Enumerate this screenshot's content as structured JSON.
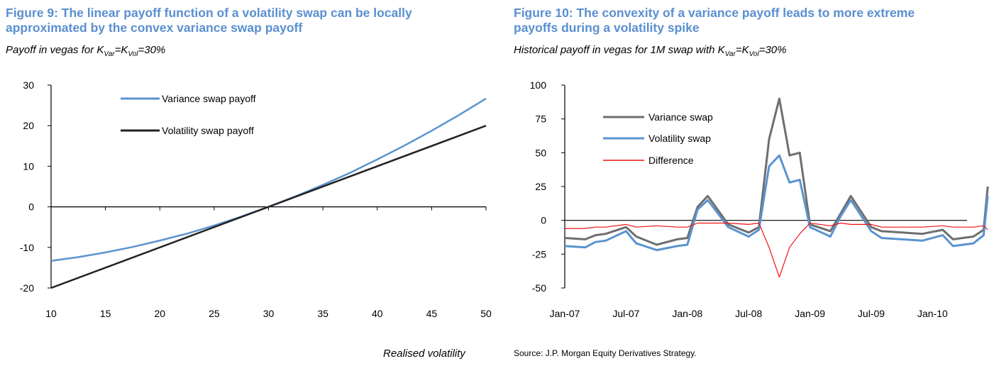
{
  "figure9": {
    "title_line1": "Figure 9: The linear payoff function of a volatility swap can be locally",
    "title_line2": "approximated by the convex variance swap payoff",
    "subtitle": {
      "pre": "Payoff in vegas for K",
      "sub1": "Var",
      "mid": "=K",
      "sub2": "Vol",
      "post": "=30%"
    }
  },
  "figure10": {
    "title_line1": "Figure 10: The convexity of a variance payoff leads to more extreme",
    "title_line2": "payoffs during a volatility spike",
    "subtitle": {
      "pre": "Historical payoff in vegas for 1M swap with K",
      "sub1": "Var",
      "mid": "=K",
      "sub2": "Vol",
      "post": "=30%"
    }
  },
  "source": "Source: J.P. Morgan Equity Derivatives Strategy.",
  "colors": {
    "title": "#5a8fd0",
    "variance_fig9": "#5b93cf",
    "volatility_fig9": "#222222",
    "variance_fig10": "#6e6e6e",
    "volatility_fig10": "#5b93cf",
    "difference": "#ee1111"
  },
  "chart_data": [
    {
      "type": "line",
      "xlabel": "Realised volatility",
      "ylabel": "",
      "xlim": [
        10,
        50
      ],
      "ylim": [
        -20,
        30
      ],
      "x_ticks": [
        "10",
        "15",
        "20",
        "25",
        "30",
        "35",
        "40",
        "45",
        "50"
      ],
      "y_ticks": [
        "30",
        "20",
        "10",
        "0",
        "-10",
        "-20"
      ],
      "legend_position": "top-center",
      "series": [
        {
          "name": "Variance swap payoff",
          "x": [
            10,
            12.5,
            15,
            17.5,
            20,
            22.5,
            25,
            27.5,
            30,
            32.5,
            35,
            37.5,
            40,
            42.5,
            45,
            47.5,
            50
          ],
          "y": [
            -13.3,
            -12.4,
            -11.25,
            -9.9,
            -8.3,
            -6.6,
            -4.6,
            -2.4,
            0,
            2.6,
            5.4,
            8.4,
            11.7,
            15.1,
            18.75,
            22.6,
            26.7
          ]
        },
        {
          "name": "Volatility swap payoff",
          "x": [
            10,
            50
          ],
          "y": [
            -20,
            20
          ]
        }
      ]
    },
    {
      "type": "line",
      "xlabel": "",
      "ylabel": "",
      "ylim": [
        -50,
        100
      ],
      "x_ticks": [
        "Jan-07",
        "Jul-07",
        "Jan-08",
        "Jul-08",
        "Jan-09",
        "Jul-09",
        "Jan-10"
      ],
      "y_ticks": [
        "100",
        "75",
        "50",
        "25",
        "0",
        "-25",
        "-50"
      ],
      "legend_position": "top-left",
      "series": [
        {
          "name": "Variance swap",
          "x": [
            "Jan-07",
            "Mar-07",
            "Apr-07",
            "May-07",
            "Jul-07",
            "Aug-07",
            "Oct-07",
            "Dec-07",
            "Jan-08",
            "Feb-08",
            "Mar-08",
            "May-08",
            "Jul-08",
            "Aug-08",
            "Sep-08",
            "Oct-08",
            "Nov-08",
            "Dec-08",
            "Jan-09",
            "Mar-09",
            "Apr-09",
            "May-09",
            "Jul-09",
            "Aug-09",
            "Oct-09",
            "Dec-09",
            "Feb-10",
            "Mar-10",
            "May-10",
            "Jun-10",
            "Jun-10"
          ],
          "y": [
            -13,
            -14,
            -11,
            -10,
            -5,
            -12,
            -18,
            -14,
            -13,
            10,
            18,
            -3,
            -9,
            -5,
            60,
            90,
            48,
            50,
            -3,
            -8,
            5,
            18,
            -5,
            -8,
            -9,
            -10,
            -7,
            -14,
            -12,
            -7,
            25
          ]
        },
        {
          "name": "Volatility swap",
          "x": [
            "Jan-07",
            "Mar-07",
            "Apr-07",
            "May-07",
            "Jul-07",
            "Aug-07",
            "Oct-07",
            "Dec-07",
            "Jan-08",
            "Feb-08",
            "Mar-08",
            "May-08",
            "Jul-08",
            "Aug-08",
            "Sep-08",
            "Oct-08",
            "Nov-08",
            "Dec-08",
            "Jan-09",
            "Mar-09",
            "Apr-09",
            "May-09",
            "Jul-09",
            "Aug-09",
            "Oct-09",
            "Dec-09",
            "Feb-10",
            "Mar-10",
            "May-10",
            "Jun-10",
            "Jun-10"
          ],
          "y": [
            -19,
            -20,
            -16,
            -15,
            -8,
            -17,
            -22,
            -19,
            -18,
            8,
            15,
            -5,
            -12,
            -7,
            40,
            48,
            28,
            30,
            -5,
            -12,
            3,
            15,
            -8,
            -13,
            -14,
            -15,
            -11,
            -19,
            -17,
            -11,
            18
          ]
        },
        {
          "name": "Difference",
          "x": [
            "Jan-07",
            "Mar-07",
            "Apr-07",
            "May-07",
            "Jul-07",
            "Aug-07",
            "Oct-07",
            "Dec-07",
            "Jan-08",
            "Feb-08",
            "Mar-08",
            "May-08",
            "Jul-08",
            "Aug-08",
            "Sep-08",
            "Oct-08",
            "Nov-08",
            "Dec-08",
            "Jan-09",
            "Mar-09",
            "Apr-09",
            "May-09",
            "Jul-09",
            "Aug-09",
            "Oct-09",
            "Dec-09",
            "Feb-10",
            "Mar-10",
            "May-10",
            "Jun-10",
            "Jun-10"
          ],
          "y": [
            -6,
            -6,
            -5,
            -5,
            -3,
            -5,
            -4,
            -5,
            -5,
            -2,
            -2,
            -2,
            -3,
            -2,
            -20,
            -42,
            -20,
            -10,
            -2,
            -4,
            -2,
            -3,
            -3,
            -5,
            -5,
            -5,
            -4,
            -5,
            -5,
            -4,
            -7
          ]
        }
      ]
    }
  ]
}
